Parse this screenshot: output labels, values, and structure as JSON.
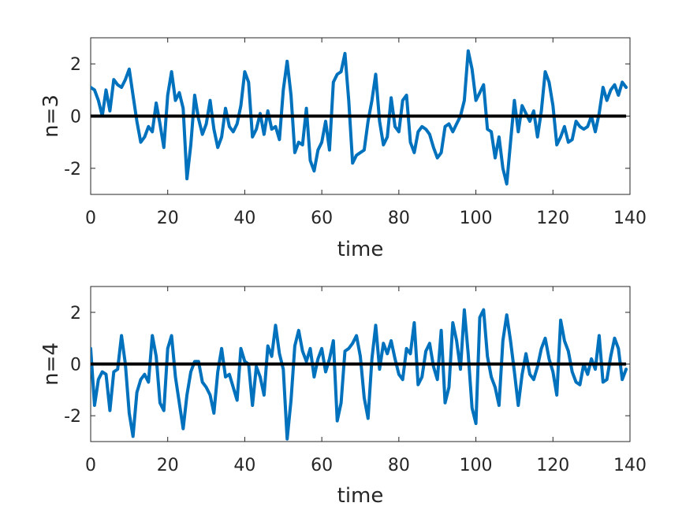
{
  "chart_data": [
    {
      "type": "line",
      "ylabel": "n=3",
      "xlabel": "time",
      "xlim": [
        0,
        140
      ],
      "ylim": [
        -3,
        3
      ],
      "xticks": [
        0,
        20,
        40,
        60,
        80,
        100,
        120,
        140
      ],
      "yticks": [
        -2,
        0,
        2
      ],
      "grid": false,
      "line_color": "#0072BD",
      "baseline": 0,
      "baseline_color": "#000000",
      "series": [
        {
          "x": [
            0,
            1,
            2,
            3,
            4,
            5,
            6,
            7,
            8,
            9,
            10,
            11,
            12,
            13,
            14,
            15,
            16,
            17,
            18,
            19,
            20,
            21,
            22,
            23,
            24,
            25,
            26,
            27,
            28,
            29,
            30,
            31,
            32,
            33,
            34,
            35,
            36,
            37,
            38,
            39,
            40,
            41,
            42,
            43,
            44,
            45,
            46,
            47,
            48,
            49,
            50,
            51,
            52,
            53,
            54,
            55,
            56,
            57,
            58,
            59,
            60,
            61,
            62,
            63,
            64,
            65,
            66,
            67,
            68,
            69,
            70,
            71,
            72,
            73,
            74,
            75,
            76,
            77,
            78,
            79,
            80,
            81,
            82,
            83,
            84,
            85,
            86,
            87,
            88,
            89,
            90,
            91,
            92,
            93,
            94,
            95,
            96,
            97,
            98,
            99,
            100,
            101,
            102,
            103,
            104,
            105,
            106,
            107,
            108,
            109,
            110,
            111,
            112,
            113,
            114,
            115,
            116,
            117,
            118,
            119,
            120,
            121,
            122,
            123,
            124,
            125,
            126,
            127,
            128,
            129,
            130,
            131,
            132,
            133,
            134,
            135,
            136,
            137,
            138,
            139
          ],
          "y": [
            1.1,
            1.0,
            0.6,
            0.0,
            1.0,
            0.2,
            1.4,
            1.2,
            1.1,
            1.4,
            1.8,
            0.8,
            -0.2,
            -1.0,
            -0.8,
            -0.4,
            -0.6,
            0.5,
            -0.3,
            -1.2,
            0.8,
            1.7,
            0.6,
            0.9,
            0.3,
            -2.4,
            -1.1,
            0.8,
            -0.1,
            -0.7,
            -0.3,
            0.6,
            -0.5,
            -1.2,
            -0.8,
            0.3,
            -0.4,
            -0.6,
            -0.3,
            0.4,
            1.7,
            1.3,
            -0.8,
            -0.5,
            0.1,
            -0.7,
            0.2,
            -0.5,
            -0.4,
            -0.9,
            1.0,
            2.1,
            0.8,
            -1.4,
            -1.0,
            -1.1,
            0.3,
            -1.7,
            -2.1,
            -1.3,
            -1.0,
            -0.2,
            -1.3,
            1.3,
            1.6,
            1.7,
            2.4,
            0.6,
            -1.8,
            -1.5,
            -1.4,
            -1.3,
            -0.2,
            0.6,
            1.6,
            -0.2,
            -1.1,
            -0.8,
            0.7,
            -0.4,
            -0.6,
            0.6,
            0.8,
            -1.0,
            -1.4,
            -0.6,
            -0.4,
            -0.5,
            -0.7,
            -1.2,
            -1.6,
            -1.4,
            -0.4,
            -0.3,
            -0.6,
            -0.3,
            0.0,
            0.6,
            2.5,
            1.8,
            0.6,
            0.9,
            1.2,
            -0.5,
            -0.6,
            -1.6,
            -0.8,
            -2.0,
            -2.6,
            -1.0,
            0.6,
            -0.6,
            0.4,
            0.1,
            -0.2,
            0.2,
            -0.8,
            0.2,
            1.7,
            1.3,
            0.4,
            -1.1,
            -0.8,
            -0.4,
            -1.0,
            -0.9,
            -0.2,
            -0.4,
            -0.5,
            -0.4,
            0.0,
            -0.6,
            0.1,
            1.1,
            0.6,
            1.0,
            1.2,
            0.8,
            1.3,
            1.1
          ]
        }
      ]
    },
    {
      "type": "line",
      "ylabel": "n=4",
      "xlabel": "time",
      "xlim": [
        0,
        140
      ],
      "ylim": [
        -3,
        3
      ],
      "xticks": [
        0,
        20,
        40,
        60,
        80,
        100,
        120,
        140
      ],
      "yticks": [
        -2,
        0,
        2
      ],
      "grid": false,
      "line_color": "#0072BD",
      "baseline": 0,
      "baseline_color": "#000000",
      "series": [
        {
          "x": [
            0,
            1,
            2,
            3,
            4,
            5,
            6,
            7,
            8,
            9,
            10,
            11,
            12,
            13,
            14,
            15,
            16,
            17,
            18,
            19,
            20,
            21,
            22,
            23,
            24,
            25,
            26,
            27,
            28,
            29,
            30,
            31,
            32,
            33,
            34,
            35,
            36,
            37,
            38,
            39,
            40,
            41,
            42,
            43,
            44,
            45,
            46,
            47,
            48,
            49,
            50,
            51,
            52,
            53,
            54,
            55,
            56,
            57,
            58,
            59,
            60,
            61,
            62,
            63,
            64,
            65,
            66,
            67,
            68,
            69,
            70,
            71,
            72,
            73,
            74,
            75,
            76,
            77,
            78,
            79,
            80,
            81,
            82,
            83,
            84,
            85,
            86,
            87,
            88,
            89,
            90,
            91,
            92,
            93,
            94,
            95,
            96,
            97,
            98,
            99,
            100,
            101,
            102,
            103,
            104,
            105,
            106,
            107,
            108,
            109,
            110,
            111,
            112,
            113,
            114,
            115,
            116,
            117,
            118,
            119,
            120,
            121,
            122,
            123,
            124,
            125,
            126,
            127,
            128,
            129,
            130,
            131,
            132,
            133,
            134,
            135,
            136,
            137,
            138,
            139
          ],
          "y": [
            0.6,
            -1.6,
            -0.6,
            -0.3,
            -0.4,
            -1.8,
            -0.3,
            -0.2,
            1.1,
            0.0,
            -1.9,
            -2.8,
            -1.1,
            -0.6,
            -0.4,
            -0.7,
            1.1,
            0.3,
            -1.5,
            -1.8,
            0.6,
            1.1,
            -0.5,
            -1.5,
            -2.5,
            -1.2,
            -0.3,
            0.1,
            0.1,
            -0.7,
            -0.9,
            -1.2,
            -1.9,
            -0.3,
            0.6,
            -0.5,
            -0.4,
            -0.9,
            -1.4,
            0.6,
            0.1,
            0.0,
            -1.6,
            -0.1,
            -0.5,
            -1.2,
            0.7,
            0.3,
            1.5,
            0.4,
            -0.2,
            -2.9,
            -1.4,
            0.7,
            1.3,
            0.5,
            0.1,
            0.6,
            -0.5,
            0.2,
            0.6,
            -0.3,
            0.2,
            0.9,
            -2.2,
            -1.5,
            0.5,
            0.6,
            0.8,
            1.1,
            0.3,
            -1.3,
            -2.1,
            0.2,
            1.5,
            -0.2,
            0.8,
            0.4,
            0.9,
            0.2,
            -0.4,
            -0.6,
            0.6,
            0.4,
            1.6,
            -0.8,
            -0.5,
            0.5,
            0.8,
            -0.1,
            -0.6,
            1.3,
            -1.5,
            -0.9,
            1.6,
            0.9,
            -0.2,
            2.1,
            0.4,
            -1.7,
            -2.3,
            1.8,
            2.1,
            0.3,
            -0.5,
            -0.9,
            -1.6,
            0.9,
            1.9,
            0.9,
            -0.3,
            -1.6,
            -0.4,
            0.4,
            -0.4,
            -0.6,
            -0.1,
            0.6,
            1.0,
            0.2,
            -0.3,
            -1.2,
            1.7,
            0.9,
            0.5,
            -0.3,
            -0.7,
            -0.8,
            0.0,
            -0.4,
            0.2,
            -0.2,
            1.1,
            -0.7,
            -0.6,
            0.3,
            1.0,
            0.6,
            -0.6,
            -0.2
          ]
        }
      ]
    }
  ]
}
